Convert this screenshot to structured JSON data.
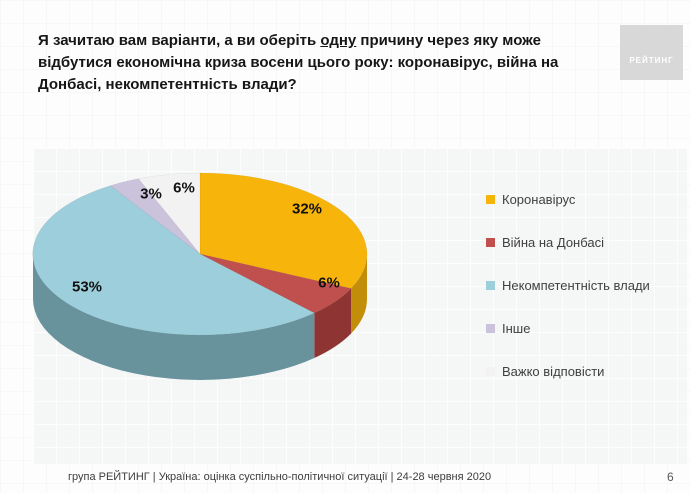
{
  "slide": {
    "title_before": "Я зачитаю вам варіанти, а ви оберіть ",
    "title_underlined": "одну",
    "title_after": " причину через яку може відбутися економічна криза восени цього року: коронавірус, війна на Донбасі, некомпетентність влади?",
    "logo_text": "РЕЙТИНГ",
    "footer_text": "група РЕЙТИНГ |  Україна: оцінка суспільно-політичної ситуації  | 24-28 червня  2020",
    "page_number": "6"
  },
  "chart_data": {
    "type": "pie",
    "style": "3d",
    "direction": "clockwise",
    "start_angle_deg": 0,
    "categories": [
      "Коронавірус",
      "Війна на Донбасі",
      "Некомпетентність влади",
      "Інше",
      "Важко відповісти"
    ],
    "values": [
      32,
      6,
      53,
      3,
      6
    ],
    "unit": "%",
    "labels": [
      "32%",
      "6%",
      "53%",
      "3%",
      "6%"
    ],
    "colors": [
      "#F7B50C",
      "#C0504D",
      "#9DCEDB",
      "#CBC2DC",
      "#F2F2F2"
    ],
    "side_colors": [
      "#C28E09",
      "#8E3533",
      "#68929C",
      "#9C92AC",
      "#BFBFBF"
    ],
    "legend_position": "right",
    "title": ""
  }
}
